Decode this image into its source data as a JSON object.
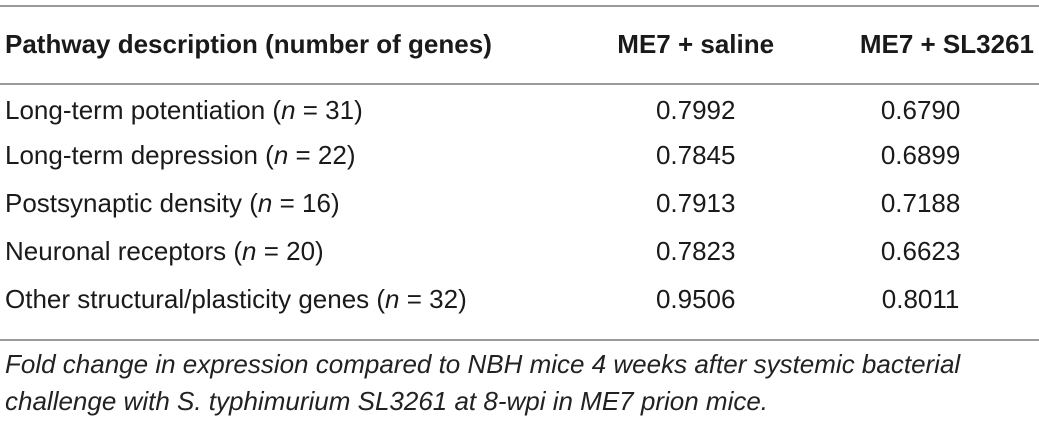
{
  "table": {
    "headers": [
      "Pathway description (number of genes)",
      "ME7 + saline",
      "ME7 + SL3261"
    ],
    "rows": [
      {
        "name": "Long-term potentiation",
        "n_var": "n",
        "n_eq": " = 31",
        "saline": "0.7992",
        "sl3261": "0.6790"
      },
      {
        "name": "Long-term depression",
        "n_var": "n",
        "n_eq": " = 22",
        "saline": "0.7845",
        "sl3261": "0.6899"
      },
      {
        "name": "Postsynaptic density",
        "n_var": "n",
        "n_eq": " = 16",
        "saline": "0.7913",
        "sl3261": "0.7188"
      },
      {
        "name": "Neuronal receptors",
        "n_var": "n",
        "n_eq": " = 20",
        "saline": "0.7823",
        "sl3261": "0.6623"
      },
      {
        "name": "Other structural/plasticity genes",
        "n_var": "n",
        "n_eq": " = 32",
        "saline": "0.9506",
        "sl3261": "0.8011"
      }
    ]
  },
  "caption": "Fold change in expression compared to NBH mice 4 weeks after systemic bacterial challenge with S. typhimurium SL3261 at 8-wpi in ME7 prion mice."
}
